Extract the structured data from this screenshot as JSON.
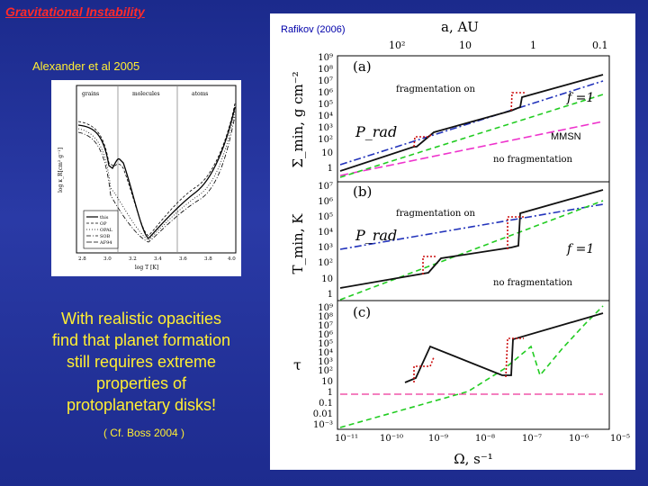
{
  "slide": {
    "title": "Gravitational Instability",
    "credit_left": "Alexander et al 2005",
    "credit_right": "Rafikov (2006)",
    "quote": "With realistic opacities find that planet formation still requires extreme properties of protoplanetary disks!",
    "cite": "( Cf. Boss 2004 )"
  },
  "opacity_figure": {
    "regions": [
      "grains",
      "molecules",
      "atoms"
    ],
    "ylabel": "log κ_R[cm² g⁻¹]",
    "xlabel": "log T [K]",
    "x_ticks": [
      "2.8",
      "3.0",
      "3.2",
      "3.4",
      "3.6",
      "3.8",
      "4.0"
    ],
    "legend": [
      "this",
      "OP",
      "OPAL",
      "SOB",
      "AF94"
    ]
  },
  "rafikov_figure": {
    "top_axis_label": "a, AU",
    "top_ticks": [
      "10²",
      "10",
      "1",
      "0.1"
    ],
    "bottom_axis_label": "Ω, s⁻¹",
    "bottom_ticks": [
      "10⁻¹¹",
      "10⁻¹⁰",
      "10⁻⁹",
      "10⁻⁸",
      "10⁻⁷",
      "10⁻⁶",
      "10⁻⁵"
    ],
    "panels": [
      {
        "tag": "(a)",
        "ylabel": "Σ_min, g cm⁻²",
        "y_ticks": [
          "10⁹",
          "10⁸",
          "10⁷",
          "10⁶",
          "10⁵",
          "10⁴",
          "10³",
          "10²",
          "10",
          "1"
        ],
        "frag_label": "fragmentation on",
        "nofrag_label": "no fragmentation",
        "prad_label": "P_rad",
        "f_label": "f =1",
        "mmsn_label": "MMSN"
      },
      {
        "tag": "(b)",
        "ylabel": "T_min, K",
        "y_ticks": [
          "10⁷",
          "10⁶",
          "10⁵",
          "10⁴",
          "10³",
          "10²",
          "10",
          "1"
        ],
        "frag_label": "fragmentation on",
        "nofrag_label": "no fragmentation",
        "prad_label": "P_rad",
        "f_label": "f =1"
      },
      {
        "tag": "(c)",
        "ylabel": "τ",
        "y_ticks": [
          "10⁹",
          "10⁸",
          "10⁷",
          "10⁶",
          "10⁵",
          "10⁴",
          "10³",
          "10²",
          "10",
          "1",
          "0.1",
          "0.01",
          "10⁻³"
        ]
      }
    ]
  }
}
